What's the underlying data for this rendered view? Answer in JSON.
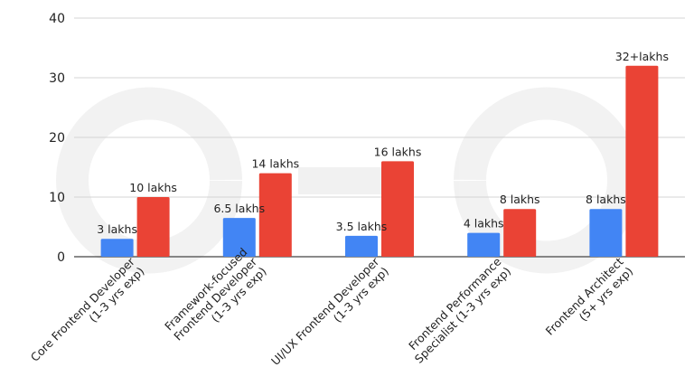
{
  "chart_data": {
    "type": "bar",
    "categories": [
      [
        "Core Frontend Developer",
        "(1-3 yrs exp)"
      ],
      [
        "Framework-focused",
        "Frontend Developer",
        "(1-3 yrs exp)"
      ],
      [
        "UI/UX Frontend Developer",
        "(1-3 yrs exp)"
      ],
      [
        "Frontend Performance",
        "Specialist (1-3 yrs exp)"
      ],
      [
        "Frontend Architect",
        "(5+ yrs exp)"
      ]
    ],
    "series": [
      {
        "color": "#4285f4",
        "values": [
          3,
          6.5,
          3.5,
          4,
          8
        ],
        "labels": [
          "3 lakhs",
          "6.5 lakhs",
          "3.5 lakhs",
          "4 lakhs",
          "8 lakhs"
        ]
      },
      {
        "color": "#ea4335",
        "values": [
          10,
          14,
          16,
          8,
          32
        ],
        "labels": [
          "10 lakhs",
          "14 lakhs",
          "16 lakhs",
          "8 lakhs",
          "32+lakhs"
        ]
      }
    ],
    "ylim": [
      0,
      40
    ],
    "yticks": [
      0,
      10,
      20,
      30,
      40
    ],
    "grid": true,
    "title": "",
    "xlabel": "",
    "ylabel": ""
  }
}
